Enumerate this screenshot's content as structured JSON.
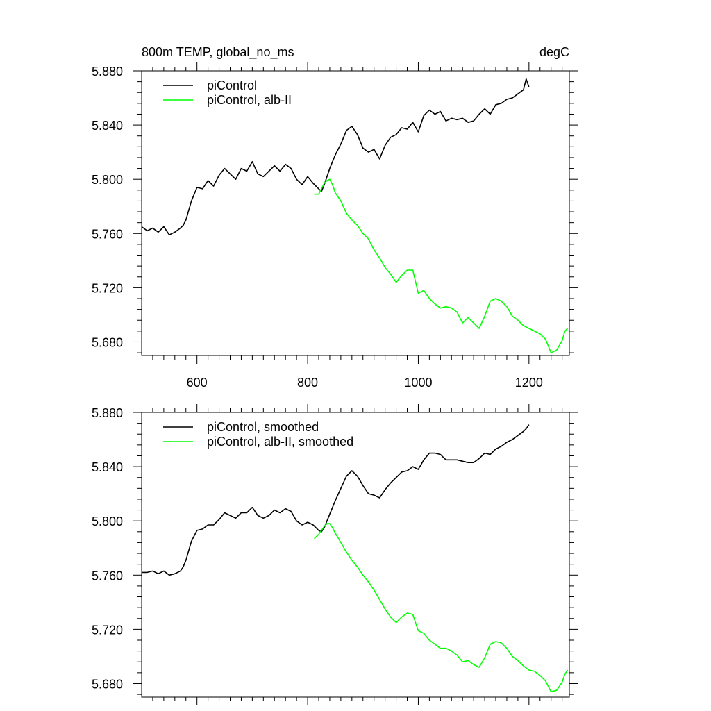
{
  "chart_data": [
    {
      "type": "line",
      "title_left": "800m TEMP, global_no_ms",
      "title_right": "degC",
      "xlim": [
        500,
        1273
      ],
      "ylim": [
        5.67,
        5.88
      ],
      "xticks": [
        600,
        800,
        1000,
        1200
      ],
      "xtick_labels": [
        "600",
        "800",
        "1000",
        "1200"
      ],
      "yticks": [
        5.68,
        5.72,
        5.76,
        5.8,
        5.84,
        5.88
      ],
      "ytick_labels": [
        "5.680",
        "5.720",
        "5.760",
        "5.800",
        "5.840",
        "5.880"
      ],
      "grid": false,
      "legend_position": "top-left",
      "series": [
        {
          "name": "piControl",
          "color": "#000000",
          "x": [
            500,
            510,
            520,
            530,
            540,
            550,
            560,
            570,
            575,
            580,
            590,
            600,
            610,
            620,
            630,
            640,
            650,
            660,
            670,
            680,
            690,
            700,
            710,
            720,
            730,
            740,
            750,
            760,
            770,
            780,
            790,
            800,
            810,
            820,
            825,
            830,
            840,
            850,
            860,
            870,
            880,
            890,
            900,
            910,
            920,
            930,
            940,
            950,
            960,
            970,
            980,
            990,
            1000,
            1010,
            1020,
            1030,
            1040,
            1050,
            1060,
            1070,
            1080,
            1090,
            1100,
            1110,
            1120,
            1130,
            1140,
            1150,
            1160,
            1170,
            1180,
            1190,
            1195,
            1200
          ],
          "y": [
            5.765,
            5.762,
            5.764,
            5.761,
            5.765,
            5.759,
            5.761,
            5.764,
            5.766,
            5.77,
            5.784,
            5.794,
            5.793,
            5.799,
            5.795,
            5.803,
            5.808,
            5.804,
            5.8,
            5.808,
            5.806,
            5.813,
            5.804,
            5.802,
            5.806,
            5.81,
            5.806,
            5.811,
            5.808,
            5.8,
            5.796,
            5.802,
            5.797,
            5.793,
            5.791,
            5.796,
            5.808,
            5.818,
            5.826,
            5.836,
            5.839,
            5.833,
            5.823,
            5.82,
            5.822,
            5.815,
            5.825,
            5.831,
            5.833,
            5.838,
            5.837,
            5.842,
            5.835,
            5.847,
            5.851,
            5.848,
            5.85,
            5.843,
            5.845,
            5.844,
            5.845,
            5.842,
            5.843,
            5.848,
            5.852,
            5.848,
            5.855,
            5.856,
            5.859,
            5.86,
            5.863,
            5.866,
            5.874,
            5.868
          ]
        },
        {
          "name": "piControl, alb-II",
          "color": "#00ff00",
          "x": [
            812,
            820,
            830,
            835,
            840,
            845,
            850,
            860,
            870,
            880,
            890,
            900,
            910,
            920,
            930,
            940,
            950,
            960,
            970,
            980,
            990,
            1000,
            1010,
            1020,
            1030,
            1040,
            1050,
            1060,
            1070,
            1080,
            1090,
            1100,
            1110,
            1120,
            1130,
            1140,
            1150,
            1160,
            1170,
            1180,
            1190,
            1200,
            1210,
            1220,
            1230,
            1240,
            1250,
            1260,
            1265,
            1270
          ],
          "y": [
            5.789,
            5.789,
            5.797,
            5.799,
            5.8,
            5.796,
            5.79,
            5.784,
            5.775,
            5.77,
            5.766,
            5.76,
            5.756,
            5.748,
            5.742,
            5.735,
            5.73,
            5.724,
            5.729,
            5.733,
            5.733,
            5.716,
            5.718,
            5.712,
            5.708,
            5.705,
            5.706,
            5.705,
            5.702,
            5.694,
            5.698,
            5.694,
            5.69,
            5.699,
            5.71,
            5.712,
            5.71,
            5.706,
            5.699,
            5.696,
            5.692,
            5.69,
            5.688,
            5.686,
            5.682,
            5.672,
            5.674,
            5.681,
            5.688,
            5.69
          ]
        }
      ]
    },
    {
      "type": "line",
      "xlim": [
        500,
        1273
      ],
      "ylim": [
        5.67,
        5.88
      ],
      "xticks": [
        600,
        800,
        1000,
        1200
      ],
      "yticks": [
        5.68,
        5.72,
        5.76,
        5.8,
        5.84,
        5.88
      ],
      "ytick_labels": [
        "5.680",
        "5.720",
        "5.760",
        "5.800",
        "5.840",
        "5.880"
      ],
      "grid": false,
      "legend_position": "top-left",
      "series": [
        {
          "name": "piControl, smoothed",
          "color": "#000000",
          "x": [
            500,
            510,
            520,
            530,
            540,
            550,
            560,
            570,
            575,
            580,
            590,
            600,
            610,
            620,
            630,
            640,
            650,
            660,
            670,
            680,
            690,
            700,
            710,
            720,
            730,
            740,
            750,
            760,
            770,
            780,
            790,
            800,
            810,
            820,
            825,
            830,
            840,
            850,
            860,
            870,
            880,
            890,
            900,
            910,
            920,
            930,
            940,
            950,
            960,
            970,
            980,
            990,
            1000,
            1010,
            1020,
            1030,
            1040,
            1050,
            1060,
            1070,
            1080,
            1090,
            1100,
            1110,
            1120,
            1130,
            1140,
            1150,
            1160,
            1170,
            1180,
            1190,
            1195,
            1200
          ],
          "y": [
            5.762,
            5.762,
            5.763,
            5.761,
            5.763,
            5.76,
            5.761,
            5.763,
            5.766,
            5.771,
            5.785,
            5.793,
            5.794,
            5.797,
            5.797,
            5.801,
            5.806,
            5.804,
            5.802,
            5.806,
            5.806,
            5.81,
            5.804,
            5.802,
            5.804,
            5.808,
            5.806,
            5.809,
            5.807,
            5.8,
            5.797,
            5.799,
            5.797,
            5.793,
            5.792,
            5.795,
            5.805,
            5.815,
            5.824,
            5.833,
            5.837,
            5.833,
            5.826,
            5.82,
            5.819,
            5.817,
            5.823,
            5.828,
            5.832,
            5.836,
            5.837,
            5.84,
            5.838,
            5.845,
            5.85,
            5.85,
            5.849,
            5.845,
            5.845,
            5.845,
            5.844,
            5.843,
            5.843,
            5.846,
            5.85,
            5.849,
            5.853,
            5.855,
            5.858,
            5.86,
            5.863,
            5.866,
            5.868,
            5.871
          ]
        },
        {
          "name": "piControl, alb-II, smoothed",
          "color": "#00ff00",
          "x": [
            812,
            820,
            830,
            835,
            840,
            845,
            850,
            860,
            870,
            880,
            890,
            900,
            910,
            920,
            930,
            940,
            950,
            960,
            970,
            980,
            990,
            1000,
            1010,
            1020,
            1030,
            1040,
            1050,
            1060,
            1070,
            1080,
            1090,
            1100,
            1110,
            1120,
            1130,
            1140,
            1150,
            1160,
            1170,
            1180,
            1190,
            1200,
            1210,
            1220,
            1230,
            1240,
            1250,
            1260,
            1265,
            1270
          ],
          "y": [
            5.787,
            5.79,
            5.796,
            5.798,
            5.798,
            5.795,
            5.791,
            5.784,
            5.777,
            5.771,
            5.766,
            5.76,
            5.755,
            5.749,
            5.742,
            5.735,
            5.729,
            5.725,
            5.729,
            5.732,
            5.731,
            5.719,
            5.717,
            5.712,
            5.709,
            5.706,
            5.706,
            5.704,
            5.701,
            5.696,
            5.697,
            5.694,
            5.692,
            5.699,
            5.709,
            5.711,
            5.71,
            5.706,
            5.7,
            5.697,
            5.693,
            5.69,
            5.689,
            5.686,
            5.682,
            5.674,
            5.675,
            5.681,
            5.687,
            5.69
          ]
        }
      ]
    }
  ]
}
